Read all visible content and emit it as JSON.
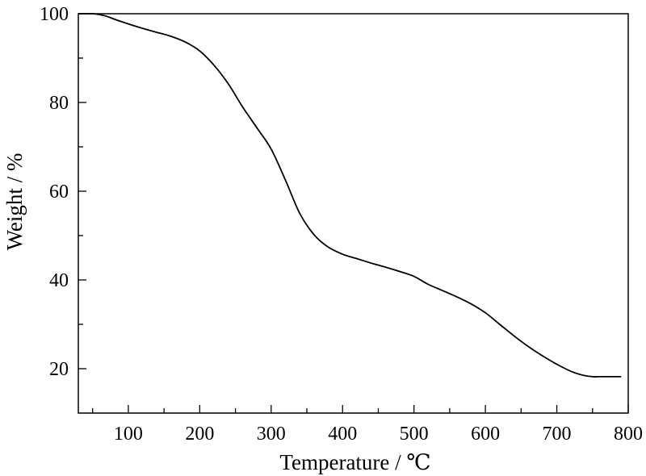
{
  "chart_data": {
    "type": "line",
    "xlabel": "Temperature / ℃",
    "ylabel": "Weight / %",
    "xlim": [
      30,
      800
    ],
    "ylim": [
      10,
      100
    ],
    "x_ticks": [
      100,
      200,
      300,
      400,
      500,
      600,
      700,
      800
    ],
    "y_ticks": [
      20,
      40,
      60,
      80,
      100
    ],
    "x_minor_ticks": [
      50,
      150,
      250,
      350,
      450,
      550,
      650,
      750
    ],
    "y_minor_ticks": [
      30,
      50,
      70,
      90
    ],
    "grid": false,
    "series": [
      {
        "color": "#000000",
        "x": [
          30,
          40,
          50,
          60,
          70,
          80,
          100,
          120,
          140,
          160,
          180,
          200,
          220,
          240,
          260,
          280,
          300,
          320,
          340,
          360,
          380,
          400,
          420,
          440,
          460,
          480,
          500,
          520,
          540,
          560,
          580,
          600,
          620,
          640,
          660,
          680,
          700,
          720,
          735,
          750,
          760,
          790
        ],
        "y": [
          100,
          100,
          100,
          99.8,
          99.4,
          98.8,
          97.7,
          96.7,
          95.8,
          94.9,
          93.6,
          91.6,
          88.4,
          84.2,
          79.0,
          74.3,
          69.5,
          62.5,
          55.0,
          50.2,
          47.4,
          45.8,
          44.8,
          43.8,
          42.9,
          41.9,
          40.8,
          39.0,
          37.6,
          36.2,
          34.6,
          32.6,
          30.0,
          27.4,
          25.0,
          22.9,
          21.0,
          19.4,
          18.6,
          18.2,
          18.2,
          18.2
        ]
      }
    ]
  }
}
